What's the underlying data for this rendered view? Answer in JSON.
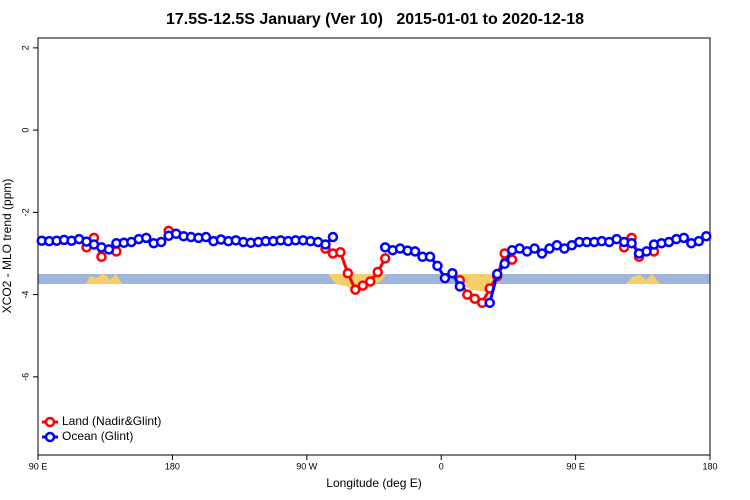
{
  "chart_data": {
    "type": "line",
    "title": "17.5S-12.5S January (Ver 10)   2015-01-01 to 2020-12-18",
    "xlabel": "Longitude (deg E)",
    "ylabel": "XCO2 - MLO trend (ppm)",
    "xlim": [
      90,
      540
    ],
    "ylim": [
      -7.9,
      2.24
    ],
    "xticks": [
      {
        "value": 90,
        "label": "90 E"
      },
      {
        "value": 180,
        "label": "180"
      },
      {
        "value": 270,
        "label": "90 W"
      },
      {
        "value": 360,
        "label": "0"
      },
      {
        "value": 450,
        "label": "90 E"
      },
      {
        "value": 540,
        "label": "180"
      }
    ],
    "yticks": [
      2,
      0,
      -2,
      -4,
      -6
    ],
    "legend": "bottom-left",
    "x": [
      92.5,
      97.5,
      102.5,
      107.5,
      112.5,
      117.5,
      122.5,
      127.5,
      132.5,
      137.5,
      142.5,
      147.5,
      152.5,
      157.5,
      162.5,
      167.5,
      172.5,
      177.5,
      182.5,
      187.5,
      192.5,
      197.5,
      202.5,
      207.5,
      212.5,
      217.5,
      222.5,
      227.5,
      232.5,
      237.5,
      242.5,
      247.5,
      252.5,
      257.5,
      262.5,
      267.5,
      272.5,
      277.5,
      282.5,
      287.5,
      292.5,
      297.5,
      302.5,
      307.5,
      312.5,
      317.5,
      322.5,
      327.5,
      332.5,
      337.5,
      342.5,
      347.5,
      352.5,
      357.5,
      362.5,
      367.5,
      372.5,
      377.5,
      382.5,
      387.5,
      392.5,
      397.5,
      402.5,
      407.5,
      412.5,
      417.5,
      422.5,
      427.5,
      432.5,
      437.5,
      442.5,
      447.5,
      452.5,
      457.5,
      462.5,
      467.5,
      472.5,
      477.5,
      482.5,
      487.5,
      492.5,
      497.5,
      502.5,
      507.5,
      512.5,
      517.5,
      522.5,
      527.5,
      532.5,
      537.5
    ],
    "series": [
      {
        "name": "Land (Nadir&Glint)",
        "color": "#ff0000",
        "values": [
          null,
          null,
          null,
          null,
          null,
          null,
          -2.85,
          -2.62,
          -3.08,
          null,
          -2.95,
          null,
          null,
          null,
          null,
          null,
          null,
          -2.45,
          null,
          null,
          null,
          null,
          null,
          null,
          null,
          null,
          null,
          null,
          null,
          null,
          null,
          null,
          null,
          null,
          null,
          null,
          null,
          null,
          -2.88,
          -3.0,
          -2.97,
          -3.48,
          -3.88,
          -3.78,
          -3.68,
          -3.45,
          -3.12,
          null,
          null,
          null,
          null,
          null,
          null,
          null,
          null,
          null,
          -3.65,
          -4.0,
          -4.1,
          -4.2,
          -3.85,
          -3.55,
          -3.0,
          -3.15,
          null,
          null,
          null,
          null,
          null,
          null,
          null,
          null,
          null,
          null,
          null,
          null,
          null,
          null,
          -2.85,
          -2.62,
          -3.08,
          null,
          -2.95,
          null,
          null,
          null,
          null,
          null,
          null,
          null
        ]
      },
      {
        "name": "Ocean (Glint)",
        "color": "#0000ff",
        "values": [
          -2.69,
          -2.7,
          -2.69,
          -2.67,
          -2.69,
          -2.65,
          -2.71,
          -2.78,
          -2.85,
          -2.9,
          -2.75,
          -2.74,
          -2.72,
          -2.65,
          -2.62,
          -2.75,
          -2.72,
          -2.57,
          -2.52,
          -2.58,
          -2.6,
          -2.62,
          -2.6,
          -2.7,
          -2.66,
          -2.7,
          -2.68,
          -2.72,
          -2.74,
          -2.72,
          -2.7,
          -2.7,
          -2.68,
          -2.7,
          -2.68,
          -2.68,
          -2.7,
          -2.72,
          -2.78,
          -2.6,
          null,
          null,
          null,
          null,
          null,
          null,
          -2.85,
          -2.92,
          -2.88,
          -2.93,
          -2.95,
          -3.08,
          -3.08,
          -3.3,
          -3.6,
          -3.48,
          -3.8,
          null,
          null,
          null,
          -4.2,
          -3.5,
          -3.25,
          -2.92,
          -2.88,
          -2.95,
          -2.88,
          -3.0,
          -2.88,
          -2.8,
          -2.88,
          -2.8,
          -2.72,
          -2.72,
          -2.72,
          -2.7,
          -2.72,
          -2.65,
          -2.72,
          -2.75,
          -3.0,
          -2.95,
          -2.78,
          -2.75,
          -2.72,
          -2.65,
          -2.62,
          -2.75,
          -2.7,
          -2.58
        ]
      }
    ]
  }
}
